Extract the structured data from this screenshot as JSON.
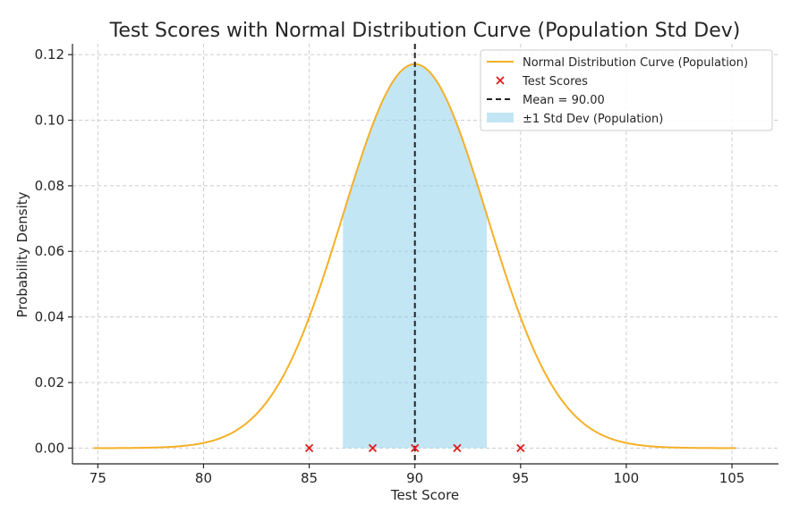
{
  "chart_data": {
    "type": "line",
    "title": "Test Scores with Normal Distribution Curve (Population Std Dev)",
    "xlabel": "Test Score",
    "ylabel": "Probability Density",
    "xlim": [
      73.8,
      107.2
    ],
    "ylim": [
      -0.0048,
      0.1233
    ],
    "xticks": [
      75,
      80,
      85,
      90,
      95,
      100,
      105
    ],
    "yticks": [
      0.0,
      0.02,
      0.04,
      0.06,
      0.08,
      0.1,
      0.12
    ],
    "xtick_labels": [
      "75",
      "80",
      "85",
      "90",
      "95",
      "100",
      "105"
    ],
    "ytick_labels": [
      "0.00",
      "0.02",
      "0.04",
      "0.06",
      "0.08",
      "0.10",
      "0.12"
    ],
    "grid": true,
    "legend_placement": "top-right",
    "colors": {
      "curve": "#f5b026",
      "scores": "#e41a1c",
      "mean": "#222222",
      "band": "#87ceeb"
    },
    "normal_curve": {
      "name": "Normal Distribution Curve (Population)",
      "mean": 90.0,
      "std": 3.406,
      "x_range": [
        74.8,
        105.2
      ]
    },
    "test_scores": {
      "name": "Test Scores",
      "x": [
        85,
        88,
        90,
        92,
        95
      ],
      "y": [
        0,
        0,
        0,
        0,
        0
      ]
    },
    "mean_line": {
      "name": "Mean = 90.00",
      "x": 90.0
    },
    "std_band": {
      "name": "±1 Std Dev (Population)",
      "x_range": [
        86.594,
        93.406
      ]
    }
  }
}
